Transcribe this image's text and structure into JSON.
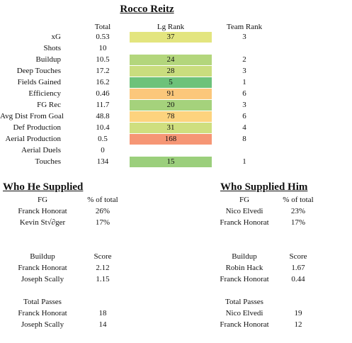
{
  "title": "Rocco Reitz",
  "headers": {
    "total": "Total",
    "lg_rank": "Lg Rank",
    "team_rank": "Team Rank"
  },
  "rows": [
    {
      "label": "xG",
      "total": "0.53",
      "lg_rank": "37",
      "team_rank": "3",
      "color": "#e3e57f"
    },
    {
      "label": "Shots",
      "total": "10",
      "lg_rank": "",
      "team_rank": "",
      "color": ""
    },
    {
      "label": "Buildup",
      "total": "10.5",
      "lg_rank": "24",
      "team_rank": "2",
      "color": "#b3d67c"
    },
    {
      "label": "Deep Touches",
      "total": "17.2",
      "lg_rank": "28",
      "team_rank": "3",
      "color": "#c9dd7e"
    },
    {
      "label": "Fields Gained",
      "total": "16.2",
      "lg_rank": "5",
      "team_rank": "1",
      "color": "#6dc27a"
    },
    {
      "label": "Efficiency",
      "total": "0.46",
      "lg_rank": "91",
      "team_rank": "6",
      "color": "#fbc77b"
    },
    {
      "label": "FG Rec",
      "total": "11.7",
      "lg_rank": "20",
      "team_rank": "3",
      "color": "#a5d27c"
    },
    {
      "label": "Avg Dist From Goal",
      "total": "48.8",
      "lg_rank": "78",
      "team_rank": "6",
      "color": "#fdd37e"
    },
    {
      "label": "Def Production",
      "total": "10.4",
      "lg_rank": "31",
      "team_rank": "4",
      "color": "#cfdf7f"
    },
    {
      "label": "Aerial Production",
      "total": "0.5",
      "lg_rank": "168",
      "team_rank": "8",
      "color": "#f69675"
    },
    {
      "label": "Aerial Duels",
      "total": "0",
      "lg_rank": "",
      "team_rank": "",
      "color": ""
    },
    {
      "label": "Touches",
      "total": "134",
      "lg_rank": "15",
      "team_rank": "1",
      "color": "#9bcf7c"
    }
  ],
  "who_he_supplied": {
    "title": "Who He Supplied",
    "fg": {
      "header": "FG",
      "col": "% of total",
      "rows": [
        {
          "name": "Franck Honorat",
          "val": "26%"
        },
        {
          "name": "Kevin St√∂ger",
          "val": "17%"
        }
      ]
    },
    "buildup": {
      "header": "Buildup",
      "col": "Score",
      "rows": [
        {
          "name": "Franck Honorat",
          "val": "2.12"
        },
        {
          "name": "Joseph Scally",
          "val": "1.15"
        }
      ]
    },
    "passes": {
      "header": "Total Passes",
      "rows": [
        {
          "name": "Franck Honorat",
          "val": "18"
        },
        {
          "name": "Joseph Scally",
          "val": "14"
        }
      ]
    }
  },
  "who_supplied_him": {
    "title": "Who Supplied Him",
    "fg": {
      "header": "FG",
      "col": "% of total",
      "rows": [
        {
          "name": "Nico Elvedi",
          "val": "23%"
        },
        {
          "name": "Franck Honorat",
          "val": "17%"
        }
      ]
    },
    "buildup": {
      "header": "Buildup",
      "col": "Score",
      "rows": [
        {
          "name": "Robin Hack",
          "val": "1.67"
        },
        {
          "name": "Franck Honorat",
          "val": "0.44"
        }
      ]
    },
    "passes": {
      "header": "Total Passes",
      "rows": [
        {
          "name": "Nico Elvedi",
          "val": "19"
        },
        {
          "name": "Franck Honorat",
          "val": "12"
        }
      ]
    }
  }
}
